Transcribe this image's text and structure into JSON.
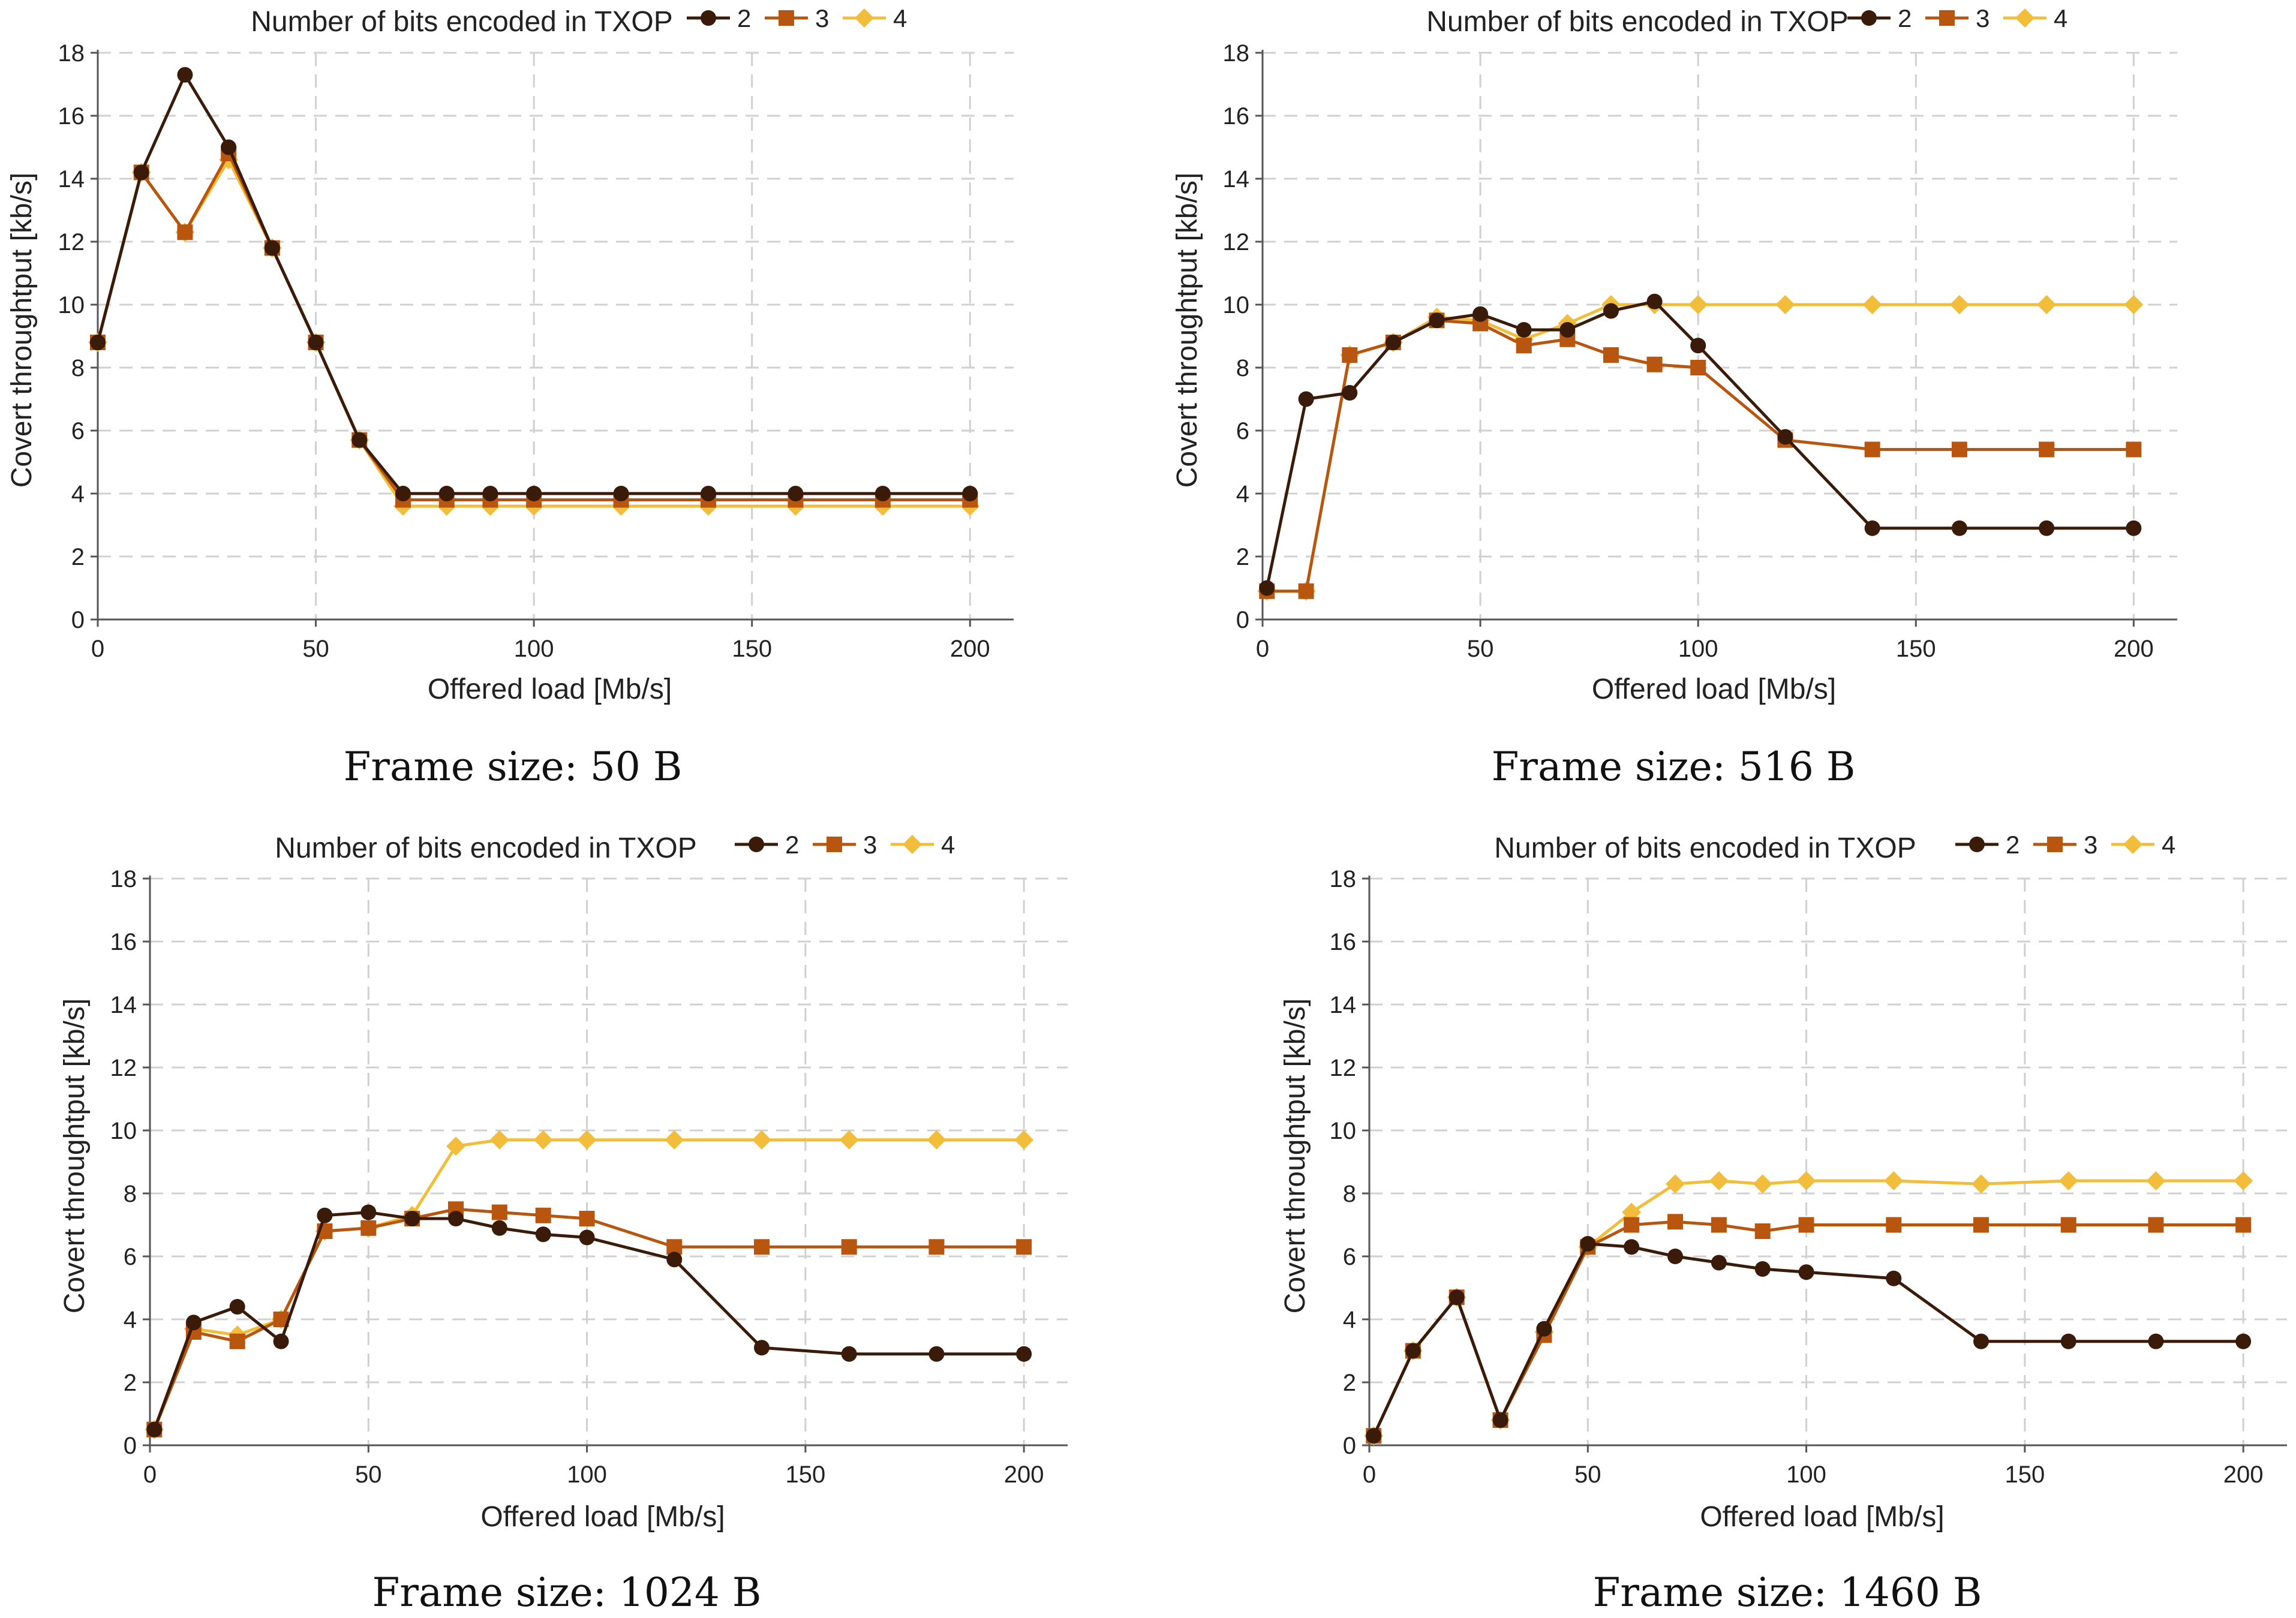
{
  "figure": {
    "panels": [
      {
        "caption": "Frame size: 50 B"
      },
      {
        "caption": "Frame size: 516 B"
      },
      {
        "caption": "Frame size: 1024 B"
      },
      {
        "caption": "Frame size: 1460 B"
      }
    ]
  },
  "colors": {
    "series_2": "#3a1a08",
    "series_3": "#b8560f",
    "series_4": "#f2bd3a",
    "grid": "#d0d0d0",
    "axis": "#555555"
  },
  "chart_data": [
    {
      "type": "line",
      "title": "Number of bits encoded in TXOP",
      "caption": "Frame size: 50 B",
      "xlabel": "Offered load [Mb/s]",
      "ylabel": "Covert throughtput [kb/s]",
      "xlim": [
        0,
        210
      ],
      "ylim": [
        0,
        18
      ],
      "xticks": [
        0,
        50,
        100,
        150,
        200
      ],
      "yticks": [
        0,
        2,
        4,
        6,
        8,
        10,
        12,
        14,
        16,
        18
      ],
      "grid": true,
      "legend": "top",
      "x": [
        0,
        10,
        20,
        30,
        40,
        50,
        60,
        70,
        80,
        90,
        100,
        120,
        140,
        160,
        180,
        200
      ],
      "series": [
        {
          "name": "2",
          "marker": "circle",
          "values": [
            8.8,
            14.2,
            17.3,
            15.0,
            11.8,
            8.8,
            5.7,
            4.0,
            4.0,
            4.0,
            4.0,
            4.0,
            4.0,
            4.0,
            4.0,
            4.0
          ]
        },
        {
          "name": "3",
          "marker": "square",
          "values": [
            8.8,
            14.2,
            12.3,
            14.8,
            11.8,
            8.8,
            5.7,
            3.8,
            3.8,
            3.8,
            3.8,
            3.8,
            3.8,
            3.8,
            3.8,
            3.8
          ]
        },
        {
          "name": "4",
          "marker": "diamond",
          "values": [
            8.8,
            14.2,
            12.3,
            14.6,
            11.8,
            8.8,
            5.7,
            3.6,
            3.6,
            3.6,
            3.6,
            3.6,
            3.6,
            3.6,
            3.6,
            3.6
          ]
        }
      ]
    },
    {
      "type": "line",
      "title": "Number of bits encoded in TXOP",
      "caption": "Frame size: 516 B",
      "xlabel": "Offered load [Mb/s]",
      "ylabel": "Covert throughtput [kb/s]",
      "xlim": [
        0,
        210
      ],
      "ylim": [
        0,
        18
      ],
      "xticks": [
        0,
        50,
        100,
        150,
        200
      ],
      "yticks": [
        0,
        2,
        4,
        6,
        8,
        10,
        12,
        14,
        16,
        18
      ],
      "grid": true,
      "legend": "top",
      "x": [
        1,
        10,
        20,
        30,
        40,
        50,
        60,
        70,
        80,
        90,
        100,
        120,
        140,
        160,
        180,
        200
      ],
      "series": [
        {
          "name": "2",
          "marker": "circle",
          "values": [
            1.0,
            7.0,
            7.2,
            8.8,
            9.5,
            9.7,
            9.2,
            9.2,
            9.8,
            10.1,
            8.7,
            5.8,
            2.9,
            2.9,
            2.9,
            2.9
          ]
        },
        {
          "name": "3",
          "marker": "square",
          "values": [
            0.9,
            0.9,
            8.4,
            8.8,
            9.5,
            9.4,
            8.7,
            8.9,
            8.4,
            8.1,
            8.0,
            5.7,
            5.4,
            5.4,
            5.4,
            5.4
          ]
        },
        {
          "name": "4",
          "marker": "diamond",
          "values": [
            0.9,
            0.9,
            8.4,
            8.8,
            9.6,
            9.5,
            8.9,
            9.4,
            10.0,
            10.0,
            10.0,
            10.0,
            10.0,
            10.0,
            10.0,
            10.0
          ]
        }
      ]
    },
    {
      "type": "line",
      "title": "Number of bits encoded in TXOP",
      "caption": "Frame size: 1024 B",
      "xlabel": "Offered load [Mb/s]",
      "ylabel": "Covert throughtput [kb/s]",
      "xlim": [
        0,
        210
      ],
      "ylim": [
        0,
        18
      ],
      "xticks": [
        0,
        50,
        100,
        150,
        200
      ],
      "yticks": [
        0,
        2,
        4,
        6,
        8,
        10,
        12,
        14,
        16,
        18
      ],
      "grid": true,
      "legend": "top",
      "x": [
        1,
        10,
        20,
        30,
        40,
        50,
        60,
        70,
        80,
        90,
        100,
        120,
        140,
        160,
        180,
        200
      ],
      "series": [
        {
          "name": "2",
          "marker": "circle",
          "values": [
            0.5,
            3.9,
            4.4,
            3.3,
            7.3,
            7.4,
            7.2,
            7.2,
            6.9,
            6.7,
            6.6,
            5.9,
            3.1,
            2.9,
            2.9,
            2.9
          ]
        },
        {
          "name": "3",
          "marker": "square",
          "values": [
            0.5,
            3.6,
            3.3,
            4.0,
            6.8,
            6.9,
            7.2,
            7.5,
            7.4,
            7.3,
            7.2,
            6.3,
            6.3,
            6.3,
            6.3,
            6.3
          ]
        },
        {
          "name": "4",
          "marker": "diamond",
          "values": [
            0.5,
            3.7,
            3.5,
            4.0,
            6.8,
            6.9,
            7.3,
            9.5,
            9.7,
            9.7,
            9.7,
            9.7,
            9.7,
            9.7,
            9.7,
            9.7
          ]
        }
      ]
    },
    {
      "type": "line",
      "title": "Number of bits encoded in TXOP",
      "caption": "Frame size: 1460 B",
      "xlabel": "Offered load [Mb/s]",
      "ylabel": "Covert throughtput [kb/s]",
      "xlim": [
        0,
        210
      ],
      "ylim": [
        0,
        18
      ],
      "xticks": [
        0,
        50,
        100,
        150,
        200
      ],
      "yticks": [
        0,
        2,
        4,
        6,
        8,
        10,
        12,
        14,
        16,
        18
      ],
      "grid": true,
      "legend": "top",
      "x": [
        1,
        10,
        20,
        30,
        40,
        50,
        60,
        70,
        80,
        90,
        100,
        120,
        140,
        160,
        180,
        200
      ],
      "series": [
        {
          "name": "2",
          "marker": "circle",
          "values": [
            0.3,
            3.0,
            4.7,
            0.8,
            3.7,
            6.4,
            6.3,
            6.0,
            5.8,
            5.6,
            5.5,
            5.3,
            3.3,
            3.3,
            3.3,
            3.3
          ]
        },
        {
          "name": "3",
          "marker": "square",
          "values": [
            0.3,
            3.0,
            4.7,
            0.8,
            3.5,
            6.3,
            7.0,
            7.1,
            7.0,
            6.8,
            7.0,
            7.0,
            7.0,
            7.0,
            7.0,
            7.0
          ]
        },
        {
          "name": "4",
          "marker": "diamond",
          "values": [
            0.3,
            3.0,
            4.7,
            0.8,
            3.6,
            6.3,
            7.4,
            8.3,
            8.4,
            8.3,
            8.4,
            8.4,
            8.3,
            8.4,
            8.4,
            8.4
          ]
        }
      ]
    }
  ]
}
